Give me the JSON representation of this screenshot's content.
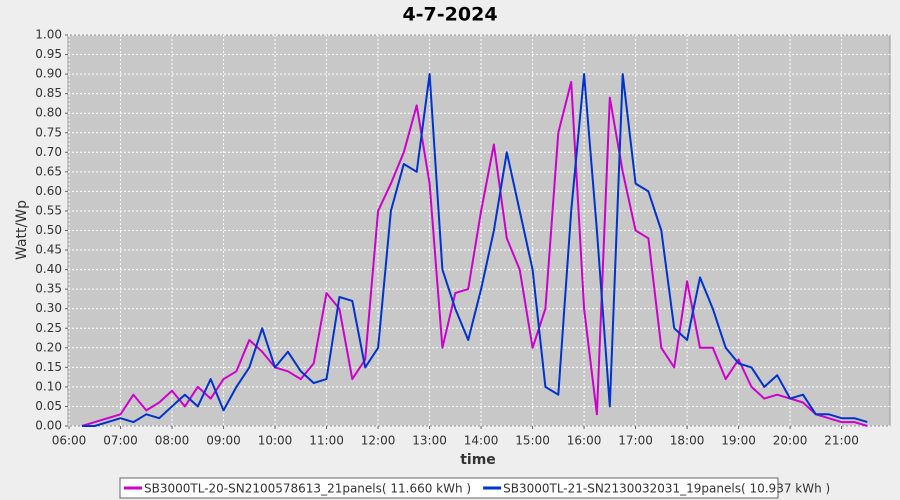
{
  "chart_data": {
    "type": "line",
    "title": "4-7-2024",
    "x_label": "time",
    "y_label": "Watt/Wp",
    "x": [
      6.25,
      6.5,
      6.75,
      7.0,
      7.25,
      7.5,
      7.75,
      8.0,
      8.25,
      8.5,
      8.75,
      9.0,
      9.25,
      9.5,
      9.75,
      10.0,
      10.25,
      10.5,
      10.75,
      11.0,
      11.25,
      11.5,
      11.75,
      12.0,
      12.25,
      12.5,
      12.75,
      13.0,
      13.25,
      13.5,
      13.75,
      14.0,
      14.25,
      14.5,
      14.75,
      15.0,
      15.25,
      15.5,
      15.75,
      16.0,
      16.25,
      16.5,
      16.75,
      17.0,
      17.25,
      17.5,
      17.75,
      18.0,
      18.25,
      18.5,
      18.75,
      19.0,
      19.25,
      19.5,
      19.75,
      20.0,
      20.25,
      20.5,
      20.75,
      21.0,
      21.25,
      21.5
    ],
    "series": [
      {
        "name": "SB3000TL-20-SN2100578613_21panels( 11.660 kWh )",
        "color": "#cc00cc",
        "values": [
          0.0,
          0.01,
          0.02,
          0.03,
          0.08,
          0.04,
          0.06,
          0.09,
          0.05,
          0.1,
          0.07,
          0.12,
          0.14,
          0.22,
          0.19,
          0.15,
          0.14,
          0.12,
          0.16,
          0.34,
          0.3,
          0.12,
          0.17,
          0.55,
          0.62,
          0.7,
          0.82,
          0.62,
          0.2,
          0.34,
          0.35,
          0.55,
          0.72,
          0.48,
          0.4,
          0.2,
          0.3,
          0.75,
          0.88,
          0.3,
          0.03,
          0.84,
          0.65,
          0.5,
          0.48,
          0.2,
          0.15,
          0.37,
          0.2,
          0.2,
          0.12,
          0.17,
          0.1,
          0.07,
          0.08,
          0.07,
          0.06,
          0.03,
          0.02,
          0.01,
          0.01,
          0.0
        ]
      },
      {
        "name": "SB3000TL-21-SN2130032031_19panels( 10.937 kWh )",
        "color": "#0033cc",
        "values": [
          0.0,
          0.0,
          0.01,
          0.02,
          0.01,
          0.03,
          0.02,
          0.05,
          0.08,
          0.05,
          0.12,
          0.04,
          0.1,
          0.15,
          0.25,
          0.15,
          0.19,
          0.14,
          0.11,
          0.12,
          0.33,
          0.32,
          0.15,
          0.2,
          0.55,
          0.67,
          0.65,
          0.9,
          0.4,
          0.3,
          0.22,
          0.35,
          0.5,
          0.7,
          0.55,
          0.4,
          0.1,
          0.08,
          0.55,
          0.9,
          0.5,
          0.05,
          0.9,
          0.62,
          0.6,
          0.5,
          0.25,
          0.22,
          0.38,
          0.3,
          0.2,
          0.16,
          0.15,
          0.1,
          0.13,
          0.07,
          0.08,
          0.03,
          0.03,
          0.02,
          0.02,
          0.01
        ]
      }
    ],
    "xlim": [
      5.98,
      21.94
    ],
    "xticks": [
      {
        "value": 6,
        "label": "06:00"
      },
      {
        "value": 7,
        "label": "07:00"
      },
      {
        "value": 8,
        "label": "08:00"
      },
      {
        "value": 9,
        "label": "09:00"
      },
      {
        "value": 10,
        "label": "10:00"
      },
      {
        "value": 11,
        "label": "11:00"
      },
      {
        "value": 12,
        "label": "12:00"
      },
      {
        "value": 13,
        "label": "13:00"
      },
      {
        "value": 14,
        "label": "14:00"
      },
      {
        "value": 15,
        "label": "15:00"
      },
      {
        "value": 16,
        "label": "16:00"
      },
      {
        "value": 17,
        "label": "17:00"
      },
      {
        "value": 18,
        "label": "18:00"
      },
      {
        "value": 19,
        "label": "19:00"
      },
      {
        "value": 20,
        "label": "20:00"
      },
      {
        "value": 21,
        "label": "21:00"
      }
    ],
    "ylim": [
      0,
      1
    ],
    "yticks": [
      {
        "value": 0,
        "label": "0.00"
      },
      {
        "value": 0.05,
        "label": "0.05"
      },
      {
        "value": 0.1,
        "label": "0.10"
      },
      {
        "value": 0.15,
        "label": "0.15"
      },
      {
        "value": 0.2,
        "label": "0.20"
      },
      {
        "value": 0.25,
        "label": "0.25"
      },
      {
        "value": 0.3,
        "label": "0.30"
      },
      {
        "value": 0.35,
        "label": "0.35"
      },
      {
        "value": 0.4,
        "label": "0.40"
      },
      {
        "value": 0.45,
        "label": "0.45"
      },
      {
        "value": 0.5,
        "label": "0.50"
      },
      {
        "value": 0.55,
        "label": "0.55"
      },
      {
        "value": 0.6,
        "label": "0.60"
      },
      {
        "value": 0.65,
        "label": "0.65"
      },
      {
        "value": 0.7,
        "label": "0.70"
      },
      {
        "value": 0.75,
        "label": "0.75"
      },
      {
        "value": 0.8,
        "label": "0.80"
      },
      {
        "value": 0.85,
        "label": "0.85"
      },
      {
        "value": 0.9,
        "label": "0.90"
      },
      {
        "value": 0.95,
        "label": "0.95"
      },
      {
        "value": 1,
        "label": "1.00"
      }
    ],
    "grid": true
  }
}
